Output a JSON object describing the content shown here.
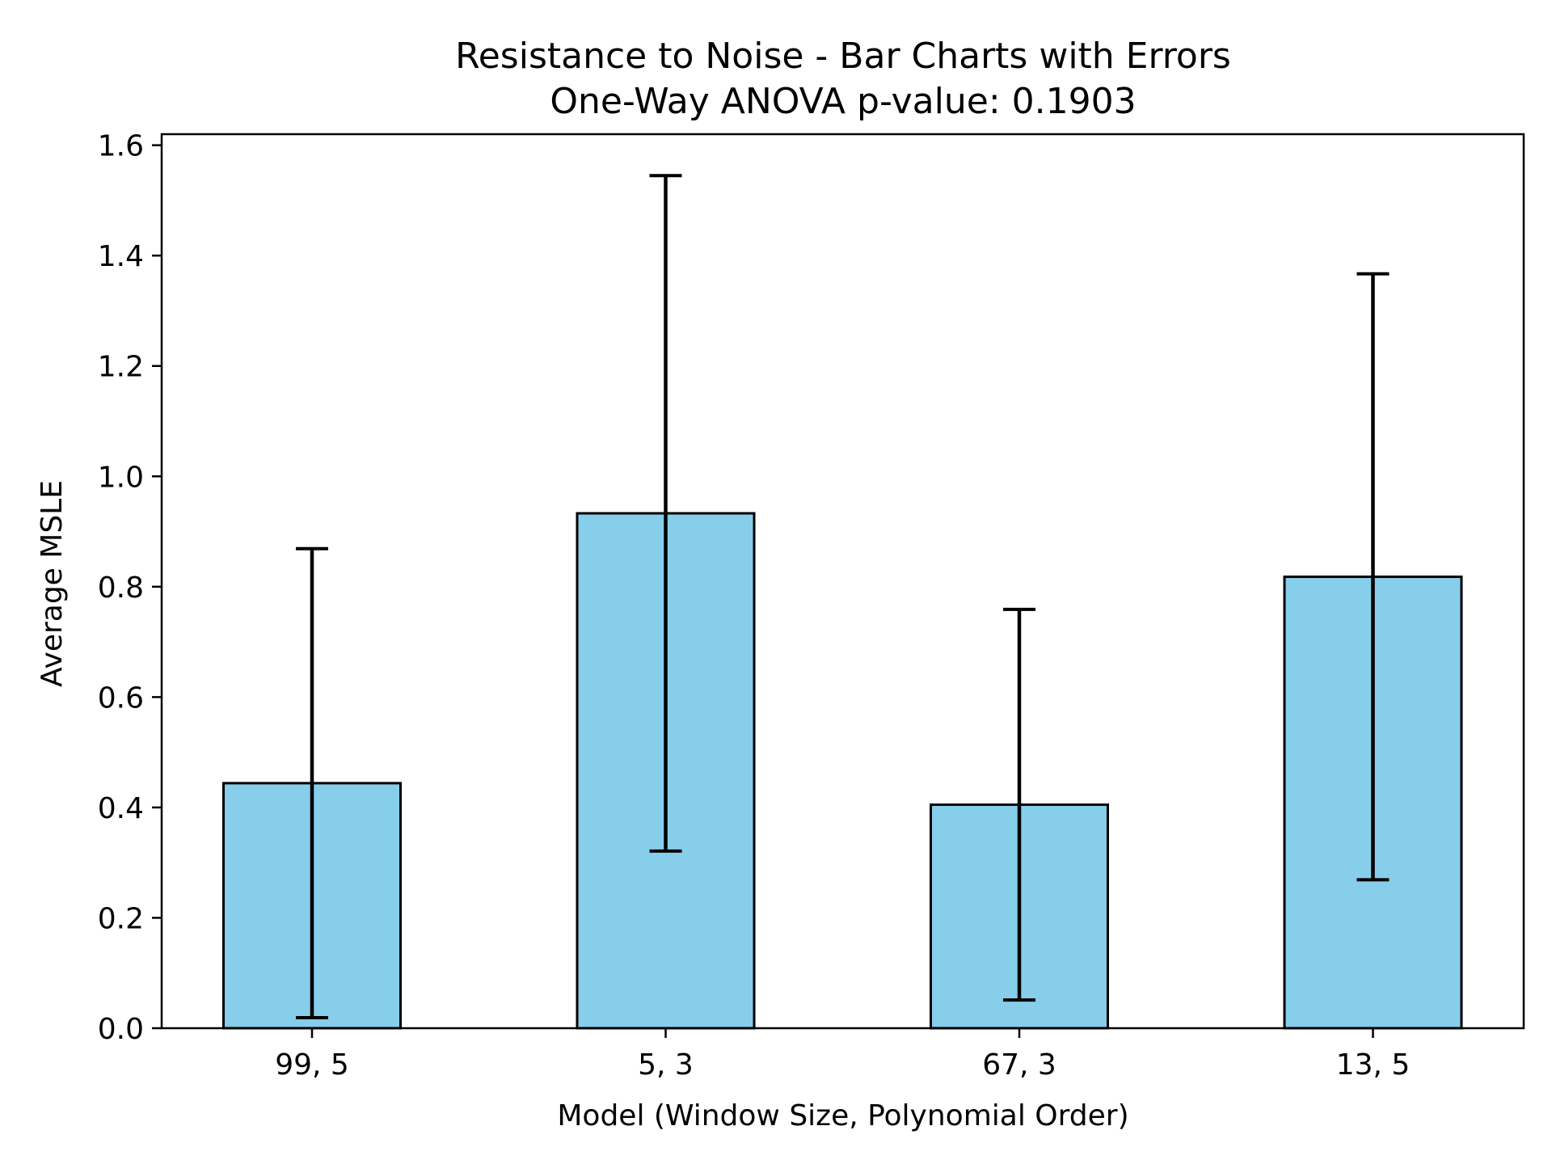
{
  "chart_data": {
    "type": "bar",
    "title": "Resistance to Noise - Bar Charts with Errors",
    "subtitle": "One-Way ANOVA p-value: 0.1903",
    "xlabel": "Model (Window Size, Polynomial Order)",
    "ylabel": "Average MSLE",
    "categories": [
      "99, 5",
      "5, 3",
      "67, 3",
      "13, 5"
    ],
    "values": [
      0.444,
      0.933,
      0.405,
      0.818
    ],
    "errors": [
      0.425,
      0.612,
      0.354,
      0.549
    ],
    "ylim": [
      0,
      1.62
    ],
    "yticks": [
      0.0,
      0.2,
      0.4,
      0.6,
      0.8,
      1.0,
      1.2,
      1.4,
      1.6
    ],
    "ytick_labels": [
      "0.0",
      "0.2",
      "0.4",
      "0.6",
      "0.8",
      "1.0",
      "1.2",
      "1.4",
      "1.6"
    ],
    "grid": false,
    "legend": "none",
    "colors": {
      "bar_fill": "#87CEEB",
      "bar_edge": "#000000",
      "error_bar": "#000000",
      "axes": "#000000"
    }
  }
}
